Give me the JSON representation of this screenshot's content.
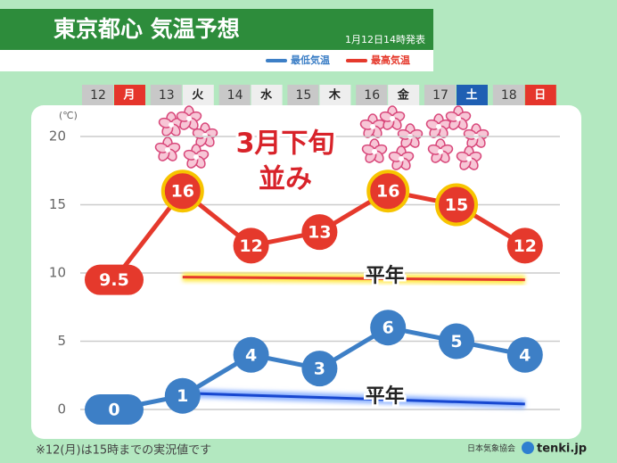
{
  "chart_data": {
    "type": "line",
    "title": "東京都心 気温予想",
    "subtitle": "1月12日14時発表",
    "categories": [
      "12",
      "13",
      "14",
      "15",
      "16",
      "17",
      "18"
    ],
    "weekdays": [
      "月",
      "火",
      "水",
      "木",
      "金",
      "土",
      "日"
    ],
    "weekday_colors": [
      "#e5352b",
      "#eeeeee",
      "#eeeeee",
      "#eeeeee",
      "#eeeeee",
      "#1f5fb3",
      "#e5352b"
    ],
    "y_unit": "(℃)",
    "ylim": [
      0,
      20
    ],
    "yticks": [
      0,
      5,
      10,
      15,
      20
    ],
    "grid": true,
    "series": [
      {
        "name": "最低気温",
        "color": "#3d7fc6",
        "values": [
          0,
          1,
          4,
          3,
          6,
          5,
          4
        ]
      },
      {
        "name": "最高気温",
        "color": "#e5392c",
        "values": [
          9.5,
          16,
          12,
          13,
          16,
          15,
          12
        ],
        "highlight": [
          false,
          true,
          false,
          false,
          true,
          true,
          false
        ]
      }
    ],
    "reference_lines": [
      {
        "label": "平年",
        "color": "#e5392c",
        "glow": "#ffe94a",
        "values": [
          9.7,
          9.5
        ]
      },
      {
        "label": "平年",
        "color": "#1747d0",
        "glow": "#8fb4ff",
        "values": [
          1.2,
          0.4
        ]
      }
    ],
    "annotations": [
      "3月下旬",
      "並み"
    ],
    "footnote": "※12(月)は15時までの実況値です",
    "credit": "日本気象協会",
    "brand": "tenki.jp"
  }
}
